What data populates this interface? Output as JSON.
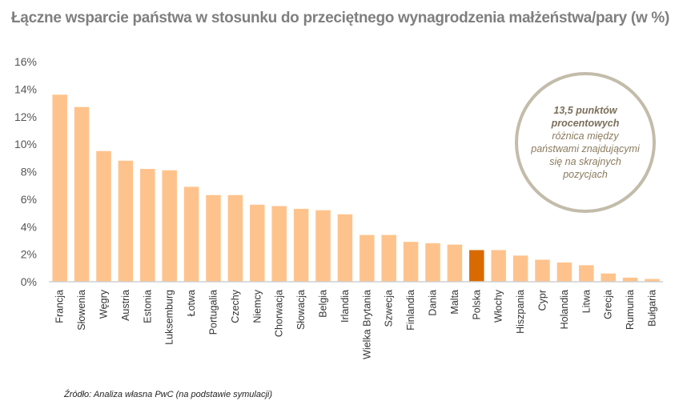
{
  "chart_data": {
    "type": "bar",
    "title": "Łączne wsparcie państwa w stosunku do przeciętnego wynagrodzenia małżeństwa/pary (w %)",
    "categories": [
      "Francja",
      "Słowenia",
      "Węgry",
      "Austria",
      "Estonia",
      "Luksemburg",
      "Łotwa",
      "Portugalia",
      "Czechy",
      "Niemcy",
      "Chorwacja",
      "Słowacja",
      "Belgia",
      "Irlandia",
      "Wielka Brytania",
      "Szwecja",
      "Finlandia",
      "Dania",
      "Malta",
      "Polska",
      "Włochy",
      "Hiszpania",
      "Cypr",
      "Holandia",
      "Litwa",
      "Grecja",
      "Rumunia",
      "Bułgaria"
    ],
    "values": [
      13.6,
      12.7,
      9.5,
      8.8,
      8.2,
      8.1,
      6.9,
      6.3,
      6.3,
      5.6,
      5.5,
      5.3,
      5.2,
      4.9,
      3.4,
      3.4,
      2.9,
      2.8,
      2.7,
      2.3,
      2.3,
      1.9,
      1.6,
      1.4,
      1.2,
      0.6,
      0.3,
      0.2
    ],
    "highlight": "Polska",
    "colors": {
      "bar": "#fec38c",
      "highlight": "#d96a00"
    },
    "yticks": [
      "0%",
      "2%",
      "4%",
      "6%",
      "8%",
      "10%",
      "12%",
      "14%",
      "16%"
    ],
    "ylim": [
      0,
      16
    ],
    "xlabel": "",
    "ylabel": ""
  },
  "annotation": {
    "bold1": "13,5 punktów",
    "bold2": "procentowych",
    "line1": "różnica między",
    "line2": "państwami znajdującymi",
    "line3": "się na skrajnych",
    "line4": "pozycjach"
  },
  "source": "Źródło: Analiza własna PwC (na podstawie symulacji)"
}
